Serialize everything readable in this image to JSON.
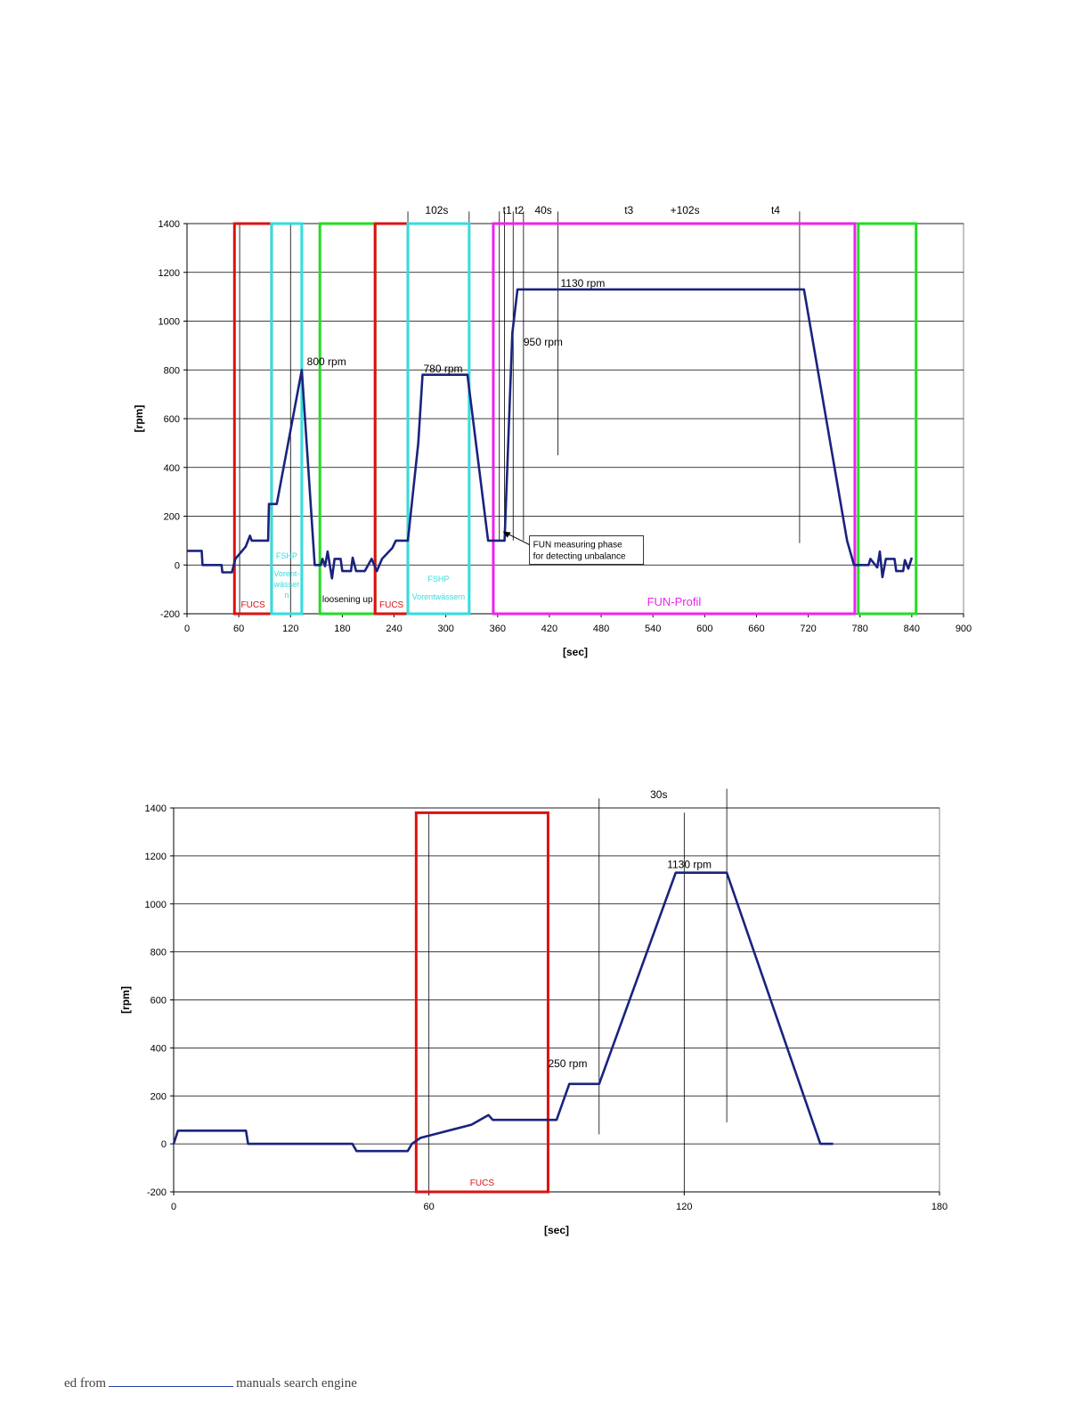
{
  "chart_data": [
    {
      "type": "line",
      "xlabel": "[sec]",
      "ylabel": "[rpm]",
      "xlim": [
        0,
        900
      ],
      "ylim": [
        -200,
        1400
      ],
      "xticks": [
        0,
        60,
        120,
        180,
        240,
        300,
        360,
        420,
        480,
        540,
        600,
        660,
        720,
        780,
        840,
        900
      ],
      "yticks": [
        -200,
        0,
        200,
        400,
        600,
        800,
        1000,
        1200,
        1400
      ],
      "grid": true,
      "series": [
        {
          "color": "#1a237e",
          "points": [
            [
              0,
              58
            ],
            [
              17,
              58
            ],
            [
              18,
              0
            ],
            [
              40,
              0
            ],
            [
              41,
              -30
            ],
            [
              52,
              -30
            ],
            [
              56,
              25
            ],
            [
              68,
              75
            ],
            [
              73,
              120
            ],
            [
              75,
              100
            ],
            [
              94,
              100
            ],
            [
              95,
              250
            ],
            [
              104,
              250
            ],
            [
              133,
              800
            ],
            [
              148,
              0
            ],
            [
              155,
              0
            ],
            [
              157,
              25
            ],
            [
              160,
              -5
            ],
            [
              163,
              55
            ],
            [
              168,
              -55
            ],
            [
              171,
              25
            ],
            [
              178,
              25
            ],
            [
              180,
              -25
            ],
            [
              190,
              -25
            ],
            [
              192,
              30
            ],
            [
              196,
              -25
            ],
            [
              206,
              -25
            ],
            [
              214,
              25
            ],
            [
              220,
              -25
            ],
            [
              226,
              25
            ],
            [
              238,
              70
            ],
            [
              242,
              100
            ],
            [
              256,
              100
            ],
            [
              268,
              500
            ],
            [
              273,
              780
            ],
            [
              325,
              780
            ],
            [
              349,
              100
            ],
            [
              368,
              100
            ],
            [
              377,
              950
            ],
            [
              383,
              1130
            ],
            [
              715,
              1130
            ],
            [
              765,
              100
            ],
            [
              773,
              0
            ],
            [
              790,
              0
            ],
            [
              792,
              25
            ],
            [
              800,
              -10
            ],
            [
              803,
              55
            ],
            [
              806,
              -50
            ],
            [
              810,
              25
            ],
            [
              820,
              25
            ],
            [
              822,
              -25
            ],
            [
              830,
              -25
            ],
            [
              832,
              20
            ],
            [
              836,
              -15
            ],
            [
              840,
              30
            ]
          ]
        }
      ],
      "regions": [
        {
          "x": [
            55,
            98
          ],
          "color": "#dd1111",
          "label": "FUCS"
        },
        {
          "x": [
            98,
            133
          ],
          "color": "#33dddd",
          "label": "FSHP",
          "label2": "Vorent-",
          "label3": "wässer",
          "label4": "n"
        },
        {
          "x": [
            154,
            218
          ],
          "color": "#22dd22",
          "label": "loosening up"
        },
        {
          "x": [
            218,
            256
          ],
          "color": "#dd1111",
          "label": "FUCS"
        },
        {
          "x": [
            256,
            327
          ],
          "color": "#33dddd",
          "label": "FSHP",
          "label2": "Vorentwässern"
        },
        {
          "x": [
            355,
            774
          ],
          "color": "#ee22ee",
          "label": "FUN-Profil"
        },
        {
          "x": [
            778,
            845
          ],
          "color": "#22dd22",
          "label": ""
        }
      ],
      "vlines": [
        {
          "x": 61,
          "y": [
            -200,
            1400
          ]
        },
        {
          "x": 120,
          "y": [
            -200,
            1400
          ]
        },
        {
          "x": 256,
          "y": [
            -200,
            1450
          ]
        },
        {
          "x": 327,
          "y": [
            100,
            1450
          ]
        },
        {
          "x": 362,
          "y": [
            100,
            1450
          ]
        },
        {
          "x": 368,
          "y": [
            100,
            1450
          ]
        },
        {
          "x": 378,
          "y": [
            100,
            1450
          ]
        },
        {
          "x": 390,
          "y": [
            100,
            1450
          ]
        },
        {
          "x": 430,
          "y": [
            450,
            1450
          ]
        },
        {
          "x": 710,
          "y": [
            90,
            1450
          ]
        }
      ],
      "annotations": [
        {
          "text": "800 rpm",
          "x": 139,
          "y": 820
        },
        {
          "text": "780 rpm",
          "x": 274,
          "y": 790
        },
        {
          "text": "1130 rpm",
          "x": 433,
          "y": 1140
        },
        {
          "text": "950 rpm",
          "x": 390,
          "y": 900
        },
        {
          "text": "102s",
          "x": 276,
          "y": 1440
        },
        {
          "text": "t1",
          "x": 366,
          "y": 1440
        },
        {
          "text": "t2",
          "x": 380,
          "y": 1440
        },
        {
          "text": "40s",
          "x": 403,
          "y": 1440
        },
        {
          "text": "t3",
          "x": 507,
          "y": 1440
        },
        {
          "text": "+102s",
          "x": 560,
          "y": 1440
        },
        {
          "text": "t4",
          "x": 677,
          "y": 1440
        }
      ],
      "callout": {
        "line1": "FUN measuring phase",
        "line2": "for detecting unbalance",
        "x": 397,
        "y": 112
      }
    },
    {
      "type": "line",
      "xlabel": "[sec]",
      "ylabel": "[rpm]",
      "xlim": [
        0,
        180
      ],
      "ylim": [
        -200,
        1400
      ],
      "xticks": [
        0,
        60,
        120,
        180
      ],
      "yticks": [
        -200,
        0,
        200,
        400,
        600,
        800,
        1000,
        1200,
        1400
      ],
      "grid": true,
      "series": [
        {
          "color": "#1a237e",
          "points": [
            [
              0,
              0
            ],
            [
              1,
              55
            ],
            [
              17,
              55
            ],
            [
              17.5,
              0
            ],
            [
              42,
              0
            ],
            [
              43,
              -30
            ],
            [
              55,
              -30
            ],
            [
              56,
              0
            ],
            [
              58,
              25
            ],
            [
              70,
              80
            ],
            [
              74,
              120
            ],
            [
              75,
              100
            ],
            [
              90,
              100
            ],
            [
              93,
              250
            ],
            [
              100,
              250
            ],
            [
              118,
              1130
            ],
            [
              130,
              1130
            ],
            [
              152,
              0
            ],
            [
              155,
              0
            ]
          ]
        }
      ],
      "regions": [
        {
          "x": [
            57,
            88
          ],
          "y": [
            -200,
            1380
          ],
          "color": "#dd1111",
          "label": "FUCS"
        }
      ],
      "vlines": [
        {
          "x": 60,
          "y": [
            -200,
            1380
          ]
        },
        {
          "x": 100,
          "y": [
            40,
            1440
          ]
        },
        {
          "x": 120,
          "y": [
            -200,
            1380
          ]
        },
        {
          "x": 130,
          "y": [
            90,
            1480
          ]
        }
      ],
      "annotations": [
        {
          "text": "30s",
          "x": 112,
          "y": 1440
        },
        {
          "text": "1130 rpm",
          "x": 116,
          "y": 1150
        },
        {
          "text": "250 rpm",
          "x": 88,
          "y": 320
        }
      ]
    }
  ],
  "footer": {
    "prefix": "ed from",
    "suffix": "manuals search engine"
  }
}
